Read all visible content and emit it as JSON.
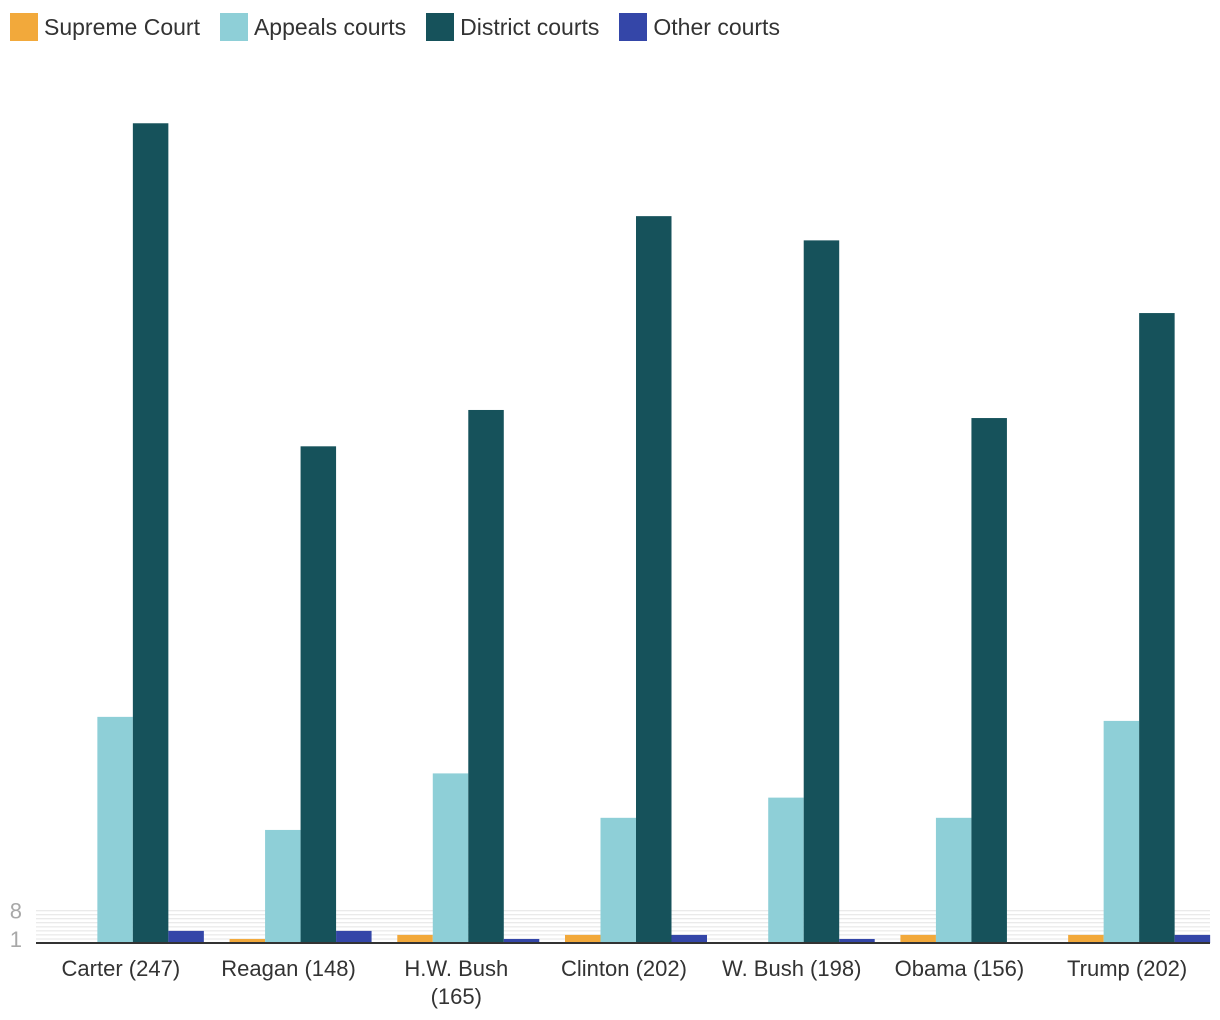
{
  "chart_data": {
    "type": "bar",
    "categories": [
      "Carter (247)",
      "Reagan (148)",
      "H.W. Bush (165)",
      "Clinton (202)",
      "W. Bush (198)",
      "Obama (156)",
      "Trump (202)"
    ],
    "series": [
      {
        "name": "Supreme Court",
        "color": "#f2a93b",
        "values": [
          0,
          1,
          2,
          2,
          0,
          2,
          2
        ]
      },
      {
        "name": "Appeals courts",
        "color": "#8ecfd7",
        "values": [
          56,
          28,
          42,
          31,
          36,
          31,
          55
        ]
      },
      {
        "name": "District courts",
        "color": "#16525b",
        "values": [
          203,
          123,
          132,
          180,
          174,
          130,
          156
        ]
      },
      {
        "name": "Other courts",
        "color": "#3446a8",
        "values": [
          3,
          3,
          1,
          2,
          1,
          0,
          2
        ]
      }
    ],
    "y_ticks": [
      1,
      8
    ],
    "ylim": [
      0,
      210
    ],
    "grid": true,
    "legend_position": "top-left",
    "axis_color": "#333333",
    "grid_color": "#e4e4e4"
  }
}
